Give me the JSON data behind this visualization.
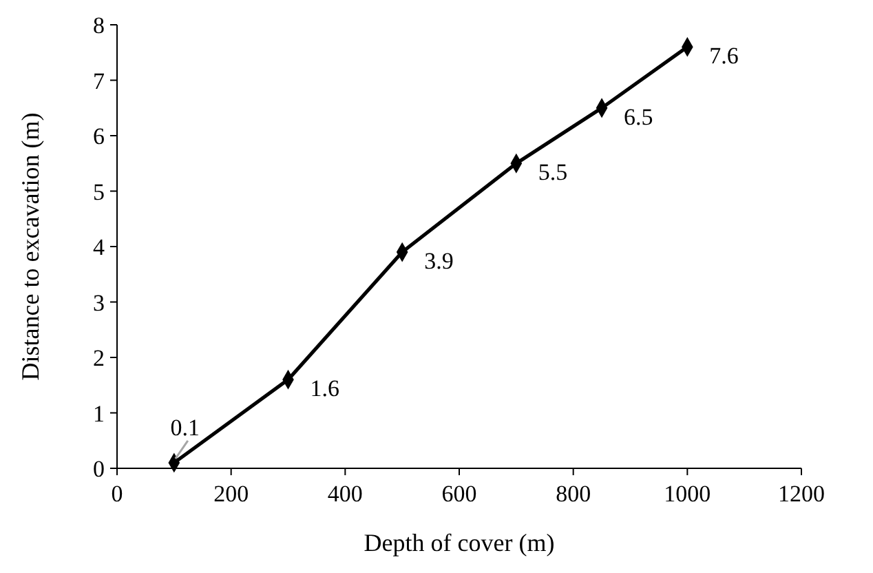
{
  "chart_data": {
    "type": "line",
    "xlabel": "Depth of cover (m)",
    "ylabel": "Distance to excavation (m)",
    "x": [
      100,
      300,
      500,
      700,
      850,
      1000
    ],
    "series": [
      {
        "color": "#000000",
        "values": [
          0.1,
          1.6,
          3.9,
          5.5,
          6.5,
          7.6
        ]
      }
    ],
    "xlim": [
      0,
      1200
    ],
    "xticks": [
      0,
      200,
      400,
      600,
      800,
      1000,
      1200
    ],
    "ylim": [
      0,
      8
    ],
    "yticks": [
      0,
      1,
      2,
      3,
      4,
      5,
      6,
      7,
      8
    ],
    "grid": false,
    "marker": "diamond",
    "line_style": "solid",
    "data_labels": true
  }
}
